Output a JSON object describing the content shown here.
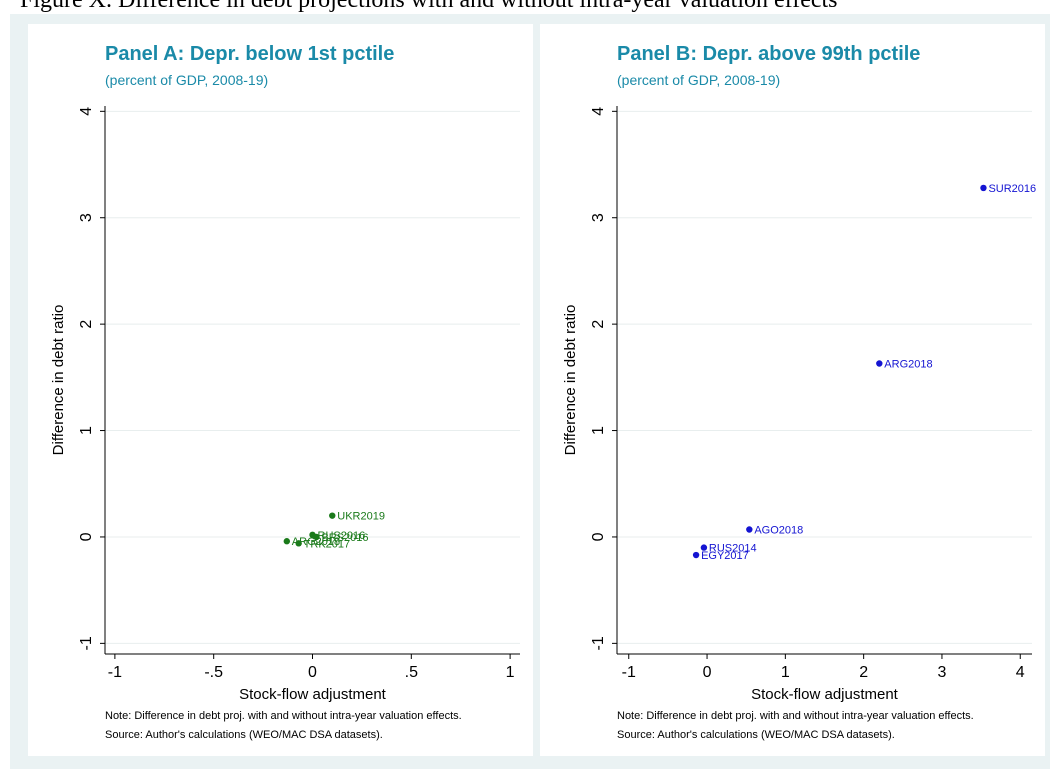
{
  "page": {
    "figure_heading": "Figure X. Difference in debt projections with and without intra-year valuation effects"
  },
  "chart_data": [
    {
      "type": "scatter",
      "title": "Panel A: Depr. below 1st pctile",
      "subtitle": "(percent of GDP, 2008-19)",
      "xlabel": "Stock-flow adjustment",
      "ylabel": "Difference in debt ratio",
      "xlim": [
        -1.05,
        1.05
      ],
      "ylim": [
        -1.1,
        4.05
      ],
      "xticks": [
        -1,
        -0.5,
        0,
        0.5,
        1
      ],
      "xtick_labels": [
        "-1",
        "-.5",
        "0",
        ".5",
        "1"
      ],
      "yticks": [
        -1,
        0,
        1,
        2,
        3,
        4
      ],
      "ytick_labels": [
        "-1",
        "0",
        "1",
        "2",
        "3",
        "4"
      ],
      "grid": true,
      "marker_color": "#1a7a1a",
      "points": [
        {
          "label": "UKR2019",
          "x": 0.1,
          "y": 0.2
        },
        {
          "label": "RUS2016",
          "x": 0.0,
          "y": 0.02
        },
        {
          "label": "BRS2016",
          "x": 0.02,
          "y": 0.0
        },
        {
          "label": "ARG2018",
          "x": -0.13,
          "y": -0.04
        },
        {
          "label": "TRK2017",
          "x": -0.07,
          "y": -0.06
        }
      ],
      "notes": [
        "Note: Difference in debt proj. with and without intra-year valuation effects.",
        "Source: Author's calculations (WEO/MAC DSA datasets)."
      ]
    },
    {
      "type": "scatter",
      "title": "Panel B: Depr. above 99th pctile",
      "subtitle": "(percent of GDP, 2008-19)",
      "xlabel": "Stock-flow adjustment",
      "ylabel": "Difference in debt ratio",
      "xlim": [
        -1.15,
        4.15
      ],
      "ylim": [
        -1.1,
        4.05
      ],
      "xticks": [
        -1,
        0,
        1,
        2,
        3,
        4
      ],
      "xtick_labels": [
        "-1",
        "0",
        "1",
        "2",
        "3",
        "4"
      ],
      "yticks": [
        -1,
        0,
        1,
        2,
        3,
        4
      ],
      "ytick_labels": [
        "-1",
        "0",
        "1",
        "2",
        "3",
        "4"
      ],
      "grid": true,
      "marker_color": "#1414d2",
      "points": [
        {
          "label": "SUR2016",
          "x": 3.53,
          "y": 3.28
        },
        {
          "label": "ARG2018",
          "x": 2.2,
          "y": 1.63
        },
        {
          "label": "AGO2018",
          "x": 0.54,
          "y": 0.07
        },
        {
          "label": "RUS2014",
          "x": -0.04,
          "y": -0.1
        },
        {
          "label": "EGY2017",
          "x": -0.14,
          "y": -0.17
        }
      ],
      "notes": [
        "Note: Difference in debt proj. with and without intra-year valuation effects.",
        "Source: Author's calculations (WEO/MAC DSA datasets)."
      ]
    }
  ]
}
